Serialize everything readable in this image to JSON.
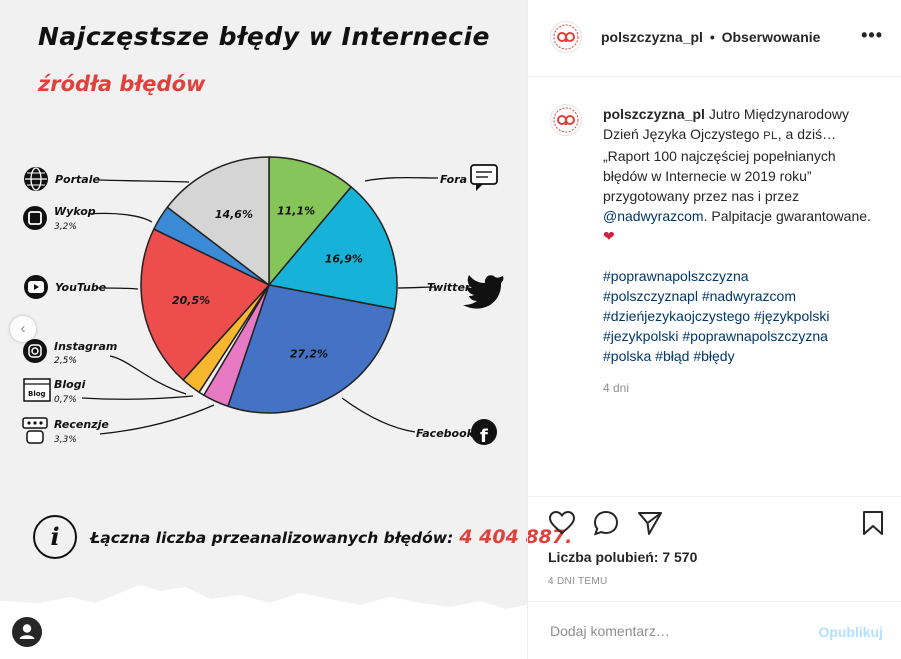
{
  "post": {
    "title": "Najczęstsze błędy w Internecie",
    "subtitle": "źródła błędów",
    "total_label": "Łączna liczba przeanalizowanych błędów:",
    "total_value": "4 404 887."
  },
  "chart_data": {
    "type": "pie",
    "unit": "%",
    "slices": [
      {
        "label": "Fora",
        "value": 11.1,
        "pct_text": "11,1%",
        "color": "#86c55a"
      },
      {
        "label": "Twitter",
        "value": 16.9,
        "pct_text": "16,9%",
        "color": "#16b2d8"
      },
      {
        "label": "Facebook",
        "value": 27.2,
        "pct_text": "27,2%",
        "color": "#4472c4"
      },
      {
        "label": "Recenzje",
        "value": 3.3,
        "pct_text": "3,3%",
        "color": "#e77ac2"
      },
      {
        "label": "Blogi",
        "value": 0.7,
        "pct_text": "0,7%",
        "color": "#f0f0f0"
      },
      {
        "label": "Instagram",
        "value": 2.5,
        "pct_text": "2,5%",
        "color": "#f8b72e"
      },
      {
        "label": "YouTube",
        "value": 20.5,
        "pct_text": "20,5%",
        "color": "#ee4d4d"
      },
      {
        "label": "Wykop",
        "value": 3.2,
        "pct_text": "3,2%",
        "color": "#3b8ad6"
      },
      {
        "label": "Portale",
        "value": 14.6,
        "pct_text": "14,6%",
        "color": "#d5d5d5"
      }
    ]
  },
  "header": {
    "username": "polszczyzna_pl",
    "separator": "•",
    "follow_label": "Obserwowanie",
    "more_icon": "•••"
  },
  "caption": {
    "username": "polszczyzna_pl",
    "text_1": "Jutro Międzynarodowy Dzień Języka Ojczystego",
    "text_small": "PL",
    "text_2": ", a dziś… „Raport 100 najczęściej popełnianych błędów w Internecie w 2019 roku” przygotowany przez nas i przez",
    "mention": "@nadwyrazcom",
    "text_3": ". Palpitacje gwarantowane.",
    "heart": "❤",
    "hashtags": [
      "#poprawnapolszczyzna",
      "#polszczyznapl",
      "#nadwyrazcom",
      "#dzieńjezykaojczystego",
      "#językpolski",
      "#jezykpolski",
      "#poprawnapolszczyzna",
      "#polska",
      "#błąd",
      "#błędy"
    ],
    "age": "4 dni"
  },
  "actions": {
    "likes_label": "Liczba polubień:",
    "likes_count": "7 570",
    "time_ago": "4 DNI TEMU"
  },
  "comment": {
    "placeholder": "Dodaj komentarz…",
    "publish_label": "Opublikuj"
  },
  "nav": {
    "prev_icon": "‹"
  }
}
